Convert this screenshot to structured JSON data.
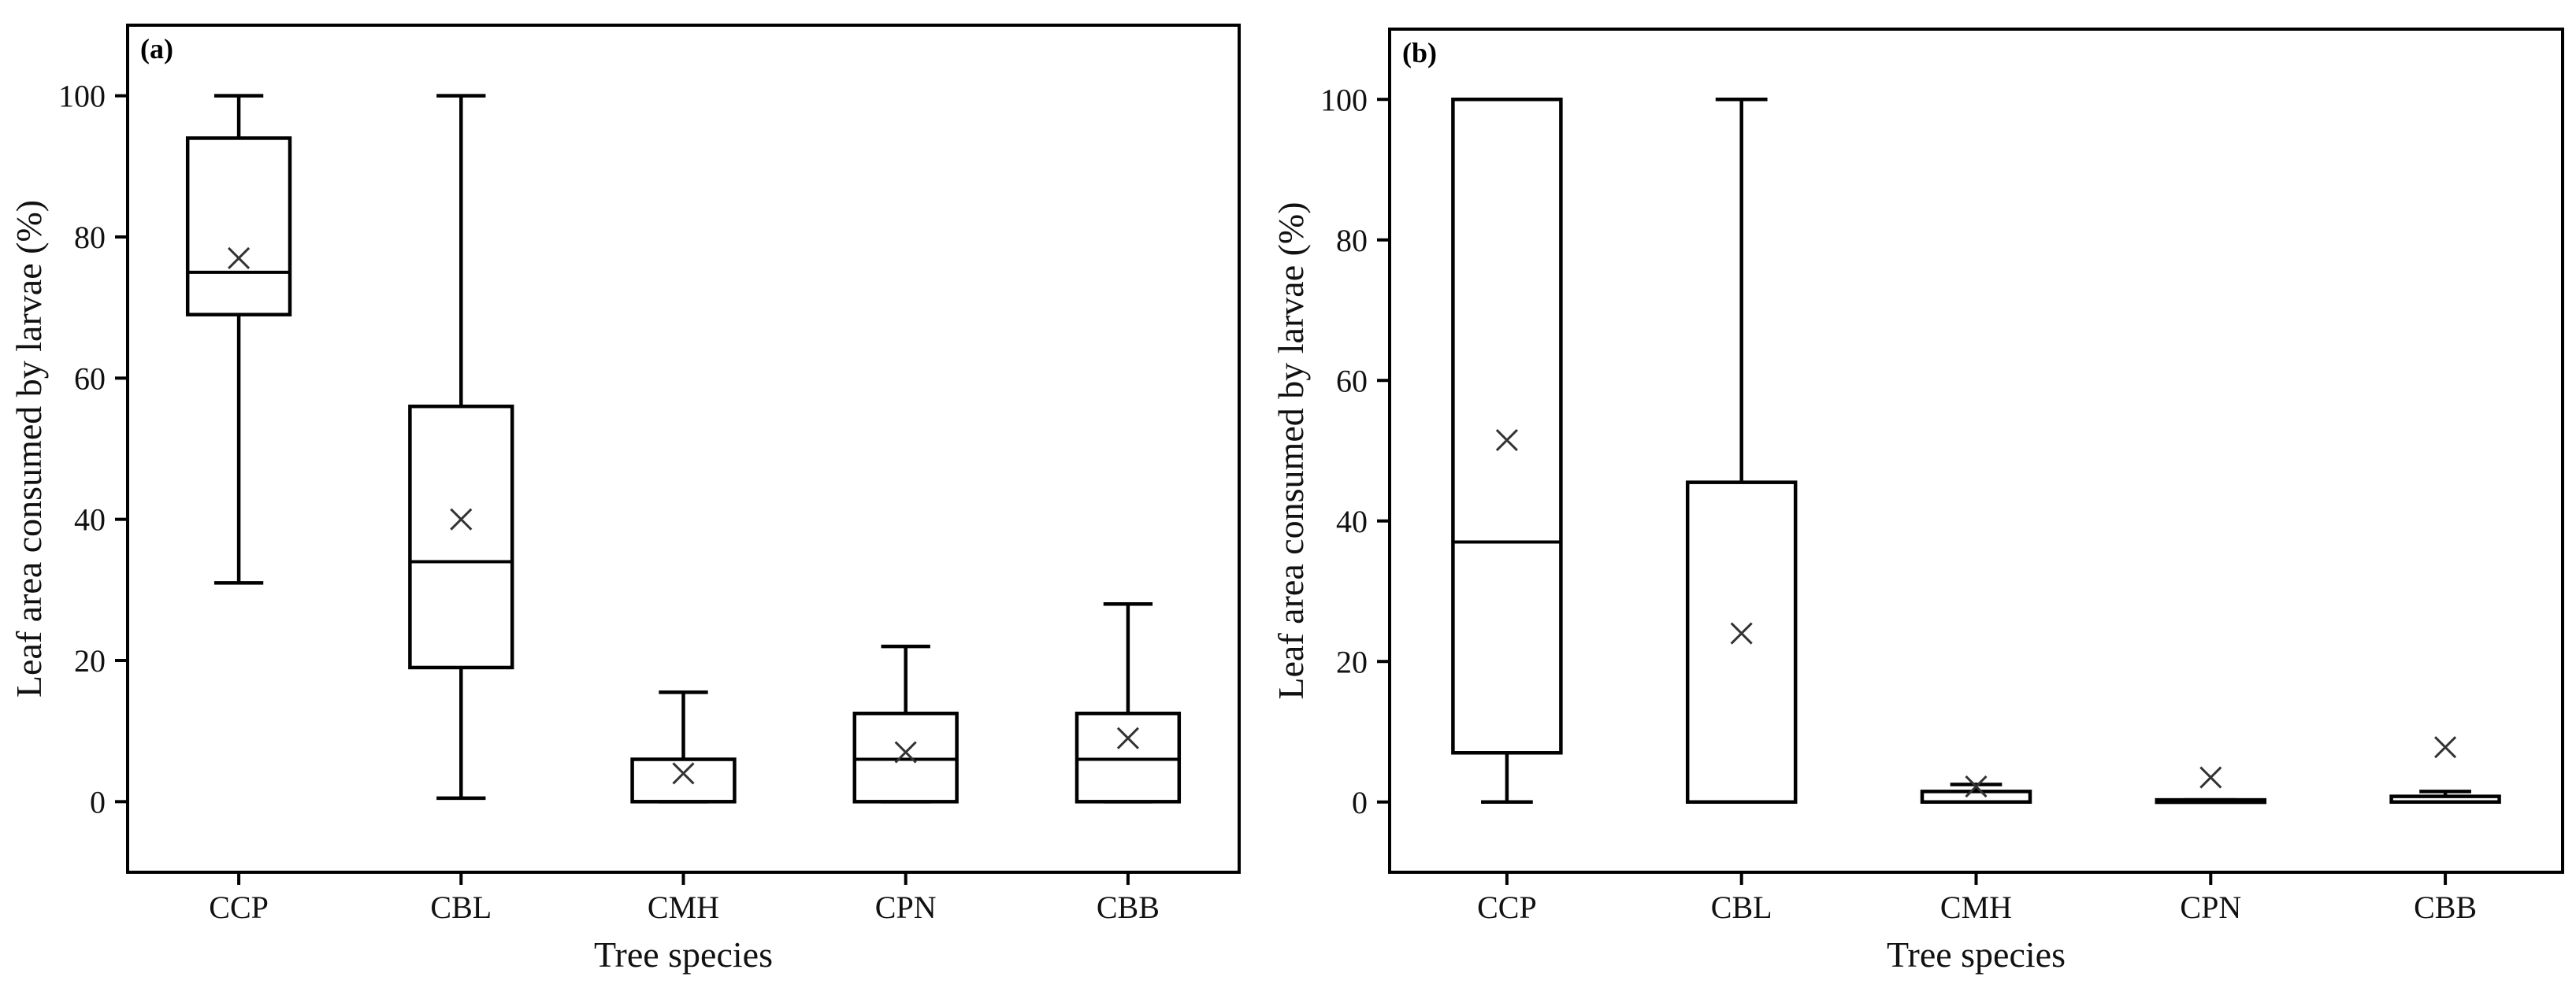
{
  "chart_data": [
    {
      "type": "boxplot",
      "panel_label": "(a)",
      "xlabel": "Tree species",
      "ylabel": "Leaf area consumed by larvae (%)",
      "ylim": [
        -10,
        110
      ],
      "yticks": [
        0,
        20,
        40,
        60,
        80,
        100
      ],
      "categories": [
        "CCP",
        "CBL",
        "CMH",
        "CPN",
        "CBB"
      ],
      "boxes": [
        {
          "category": "CCP",
          "min": 31,
          "q1": 69,
          "median": 75,
          "q3": 94,
          "max": 100,
          "mean": 77
        },
        {
          "category": "CBL",
          "min": 0.5,
          "q1": 19,
          "median": 34,
          "q3": 56,
          "max": 100,
          "mean": 40
        },
        {
          "category": "CMH",
          "min": 0,
          "q1": 0,
          "median": 0,
          "q3": 6,
          "max": 15.5,
          "mean": 4
        },
        {
          "category": "CPN",
          "min": 0,
          "q1": 0,
          "median": 6,
          "q3": 12.5,
          "max": 22,
          "mean": 7
        },
        {
          "category": "CBB",
          "min": 0,
          "q1": 0,
          "median": 6,
          "q3": 12.5,
          "max": 28,
          "mean": 9
        }
      ]
    },
    {
      "type": "boxplot",
      "panel_label": "(b)",
      "xlabel": "Tree species",
      "ylabel": "Leaf area consumed by larvae (%)",
      "ylim": [
        -10,
        110
      ],
      "yticks": [
        0,
        20,
        40,
        60,
        80,
        100
      ],
      "categories": [
        "CCP",
        "CBL",
        "CMH",
        "CPN",
        "CBB"
      ],
      "boxes": [
        {
          "category": "CCP",
          "min": 0,
          "q1": 7,
          "median": 37,
          "q3": 100,
          "max": 100,
          "mean": 51.5
        },
        {
          "category": "CBL",
          "min": 0,
          "q1": 0,
          "median": 0,
          "q3": 45.5,
          "max": 100,
          "mean": 24
        },
        {
          "category": "CMH",
          "min": 0,
          "q1": 0,
          "median": 0,
          "q3": 1.5,
          "max": 2.5,
          "mean": 2.2
        },
        {
          "category": "CPN",
          "min": 0,
          "q1": 0,
          "median": 0,
          "q3": 0.3,
          "max": 0.3,
          "mean": 3.5
        },
        {
          "category": "CBB",
          "min": 0,
          "q1": 0,
          "median": 0,
          "q3": 0.8,
          "max": 1.5,
          "mean": 7.8
        }
      ]
    }
  ]
}
